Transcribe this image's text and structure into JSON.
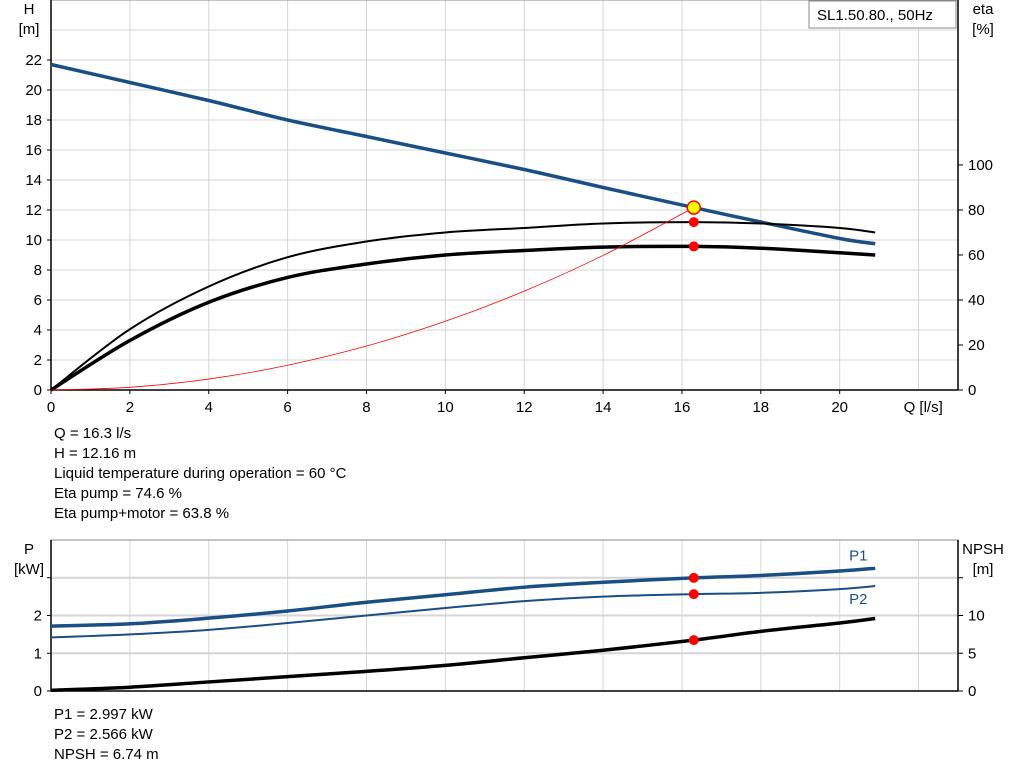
{
  "chart_data": [
    {
      "type": "line",
      "title": "SL1.50.80., 50Hz",
      "xlabel": "Q [l/s]",
      "ylabel": [
        "H",
        "[m]"
      ],
      "y2label": [
        "eta",
        "[%]"
      ],
      "xlim": [
        0,
        23
      ],
      "ylim": [
        0,
        26
      ],
      "y2lim": [
        0,
        173.3
      ],
      "xticks": [
        0,
        2,
        4,
        6,
        8,
        10,
        12,
        14,
        16,
        18,
        20
      ],
      "yticks": [
        0,
        2,
        4,
        6,
        8,
        10,
        12,
        14,
        16,
        18,
        20,
        22
      ],
      "y2ticks": [
        0,
        20,
        40,
        60,
        80,
        100
      ],
      "grid": true,
      "series": [
        {
          "axis": "y",
          "color": "#1a4f85",
          "x": [
            0,
            2,
            4,
            6,
            8,
            10,
            12,
            14,
            16.3,
            18,
            20,
            20.9
          ],
          "y": [
            21.7,
            20.5,
            19.3,
            18.0,
            16.9,
            15.8,
            14.7,
            13.5,
            12.16,
            11.2,
            10.1,
            9.75
          ]
        },
        {
          "axis": "y2",
          "color": "#000000",
          "x": [
            0,
            2,
            4,
            6,
            8,
            10,
            12,
            14,
            16.3,
            18,
            20,
            20.9
          ],
          "y": [
            0,
            27,
            46,
            59,
            66,
            70,
            72,
            74,
            74.6,
            74,
            72,
            70
          ]
        },
        {
          "axis": "y2",
          "color": "#000000",
          "x": [
            0,
            2,
            4,
            6,
            8,
            10,
            12,
            14,
            16.3,
            18,
            20,
            20.9
          ],
          "y": [
            0,
            22,
            39,
            50,
            56,
            60,
            62,
            63.5,
            63.8,
            63,
            61,
            60
          ]
        },
        {
          "axis": "y",
          "color": "#ff0000",
          "x": [
            0,
            2,
            4,
            6,
            8,
            10,
            12,
            14,
            16.3
          ],
          "y": [
            0,
            0.18,
            0.73,
            1.65,
            2.93,
            4.58,
            6.59,
            8.97,
            12.16
          ]
        }
      ],
      "operating_point": {
        "x": 16.3,
        "y": 12.16,
        "eta_pump": 74.6,
        "eta_total": 63.8
      }
    },
    {
      "type": "line",
      "ylabel": [
        "P",
        "[kW]"
      ],
      "y2label": [
        "NPSH",
        "[m]"
      ],
      "xlim": [
        0,
        23
      ],
      "ylim": [
        0,
        4
      ],
      "y2lim": [
        0,
        20
      ],
      "yticks": [
        0,
        1,
        2
      ],
      "y2ticks": [
        0,
        5,
        10
      ],
      "grid": true,
      "series": [
        {
          "name": "P1",
          "axis": "y",
          "color": "#1a4f85",
          "x": [
            0,
            2,
            4,
            6,
            8,
            10,
            12,
            14,
            16.3,
            18,
            20,
            20.9
          ],
          "y": [
            1.72,
            1.78,
            1.93,
            2.12,
            2.35,
            2.55,
            2.75,
            2.88,
            2.997,
            3.06,
            3.18,
            3.25
          ]
        },
        {
          "name": "P2",
          "axis": "y",
          "color": "#1a4f85",
          "x": [
            0,
            2,
            4,
            6,
            8,
            10,
            12,
            14,
            16.3,
            18,
            20,
            20.9
          ],
          "y": [
            1.42,
            1.5,
            1.62,
            1.8,
            2.0,
            2.2,
            2.38,
            2.5,
            2.566,
            2.6,
            2.7,
            2.78
          ]
        },
        {
          "axis": "y2",
          "color": "#000000",
          "x": [
            0,
            2,
            4,
            6,
            8,
            10,
            12,
            14,
            16.3,
            18,
            20,
            20.9
          ],
          "y": [
            0.1,
            0.5,
            1.2,
            1.9,
            2.6,
            3.4,
            4.4,
            5.4,
            6.74,
            7.9,
            9.0,
            9.6
          ]
        }
      ],
      "operating_point": {
        "x": 16.3,
        "P1": 2.997,
        "P2": 2.566,
        "NPSH": 6.74
      }
    }
  ],
  "info_top": [
    "Q = 16.3 l/s",
    "H = 12.16 m",
    "Liquid temperature during operation = 60 °C",
    "Eta pump = 74.6 %",
    "Eta pump+motor = 63.8 %"
  ],
  "info_bottom": [
    "P1 = 2.997 kW",
    "P2 = 2.566 kW",
    "NPSH = 6.74 m"
  ]
}
